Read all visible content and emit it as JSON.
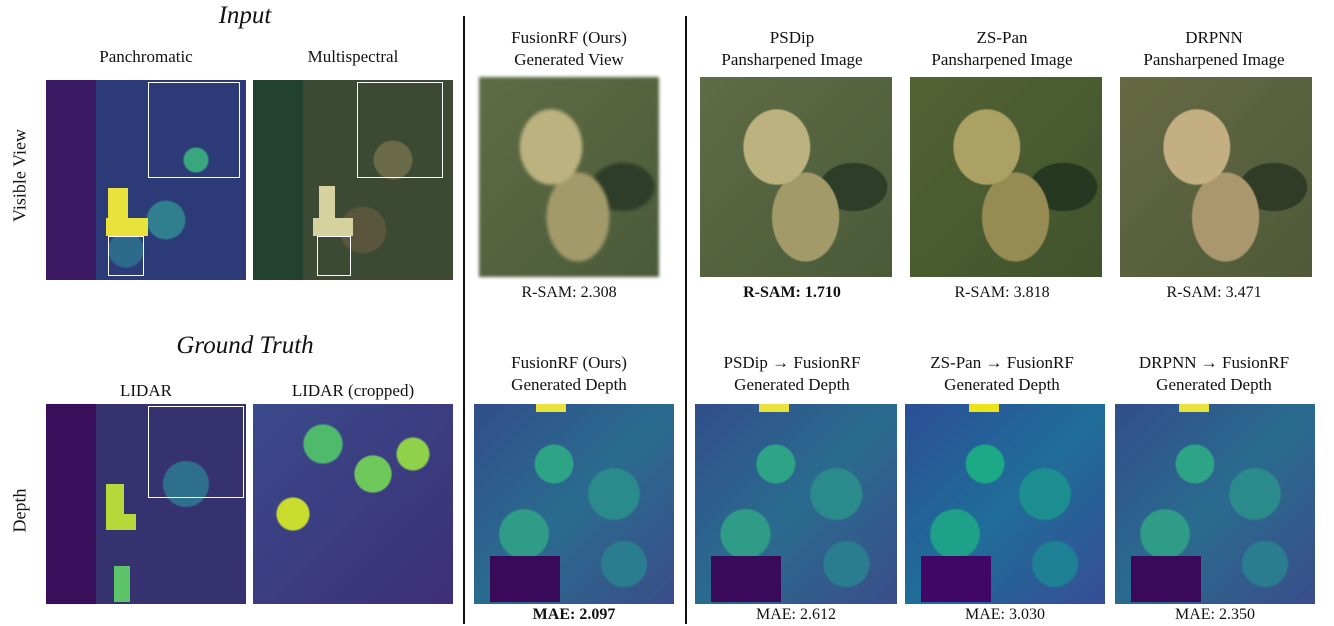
{
  "section_titles": {
    "input": "Input",
    "ground_truth": "Ground Truth"
  },
  "row_labels": {
    "visible": "Visible View",
    "depth": "Depth"
  },
  "input_labels": {
    "panchromatic": "Panchromatic",
    "multispectral": "Multispectral"
  },
  "gt_labels": {
    "lidar": "LIDAR",
    "lidar_cropped": "LIDAR (cropped)"
  },
  "top_row": [
    {
      "line1": "FusionRF (Ours)",
      "line2": "Generated View",
      "metric": "R-SAM:",
      "value": "2.308",
      "bold": false
    },
    {
      "line1": "PSDip",
      "line2": "Pansharpened Image",
      "metric": "R-SAM:",
      "value": "1.710",
      "bold": true
    },
    {
      "line1": "ZS-Pan",
      "line2": "Pansharpened Image",
      "metric": "R-SAM:",
      "value": "3.818",
      "bold": false
    },
    {
      "line1": "DRPNN",
      "line2": "Pansharpened Image",
      "metric": "R-SAM:",
      "value": "3.471",
      "bold": false
    }
  ],
  "bottom_row": [
    {
      "line1": "FusionRF (Ours)",
      "line2": "Generated Depth",
      "metric": "MAE:",
      "value": "2.097",
      "bold": true
    },
    {
      "line1": "PSDip → FusionRF",
      "line2": "Generated Depth",
      "metric": "MAE:",
      "value": "2.612",
      "bold": false
    },
    {
      "line1": "ZS-Pan → FusionRF",
      "line2": "Generated Depth",
      "metric": "MAE:",
      "value": "3.030",
      "bold": false
    },
    {
      "line1": "DRPNN → FusionRF",
      "line2": "Generated Depth",
      "metric": "MAE:",
      "value": "2.350",
      "bold": false
    }
  ]
}
